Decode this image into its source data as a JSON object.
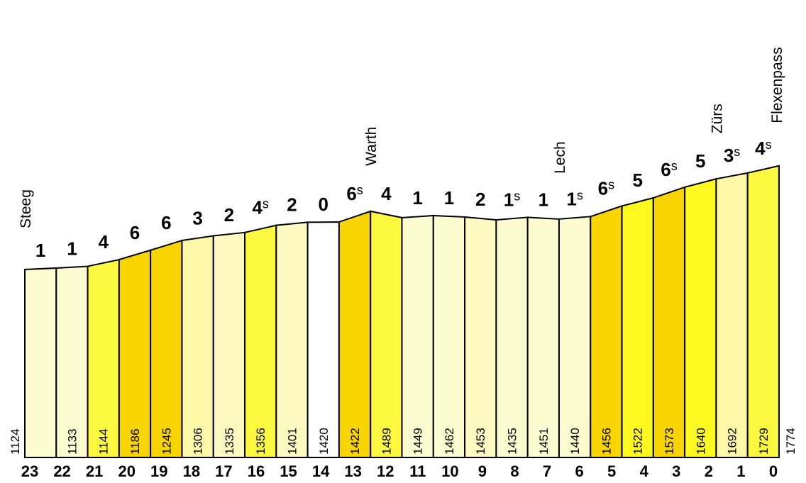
{
  "profile": {
    "elevations": [
      1124,
      1133,
      1144,
      1186,
      1245,
      1306,
      1335,
      1356,
      1401,
      1420,
      1422,
      1489,
      1449,
      1462,
      1453,
      1435,
      1451,
      1440,
      1456,
      1522,
      1573,
      1640,
      1692,
      1729,
      1774
    ],
    "distances": [
      23,
      22,
      21,
      20,
      19,
      18,
      17,
      16,
      15,
      14,
      13,
      12,
      11,
      10,
      9,
      8,
      7,
      6,
      5,
      4,
      3,
      2,
      1,
      0
    ],
    "places": [
      "Steeg",
      null,
      null,
      null,
      null,
      null,
      null,
      null,
      null,
      null,
      null,
      "Warth",
      null,
      null,
      null,
      null,
      null,
      "Lech",
      null,
      null,
      null,
      null,
      "Zürs",
      null,
      "Flexenpass"
    ],
    "segments": [
      {
        "grade": "1",
        "color": "#fdfbd0"
      },
      {
        "grade": "1",
        "color": "#fdfbd0"
      },
      {
        "grade": "4",
        "color": "#fcf840"
      },
      {
        "grade": "6",
        "color": "#f8d400"
      },
      {
        "grade": "6",
        "color": "#f8d400"
      },
      {
        "grade": "3",
        "color": "#fcf8a8"
      },
      {
        "grade": "2",
        "color": "#fcfac0"
      },
      {
        "grade": "4",
        "sup": "s",
        "color": "#fcf840"
      },
      {
        "grade": "2",
        "color": "#fcfac0"
      },
      {
        "grade": "0",
        "color": "#ffffff"
      },
      {
        "grade": "6",
        "sup": "s",
        "color": "#f8d400"
      },
      {
        "grade": "4",
        "color": "#fcf840"
      },
      {
        "grade": "1",
        "color": "#fdfbd0"
      },
      {
        "grade": "1",
        "color": "#fdfbd0"
      },
      {
        "grade": "2",
        "color": "#fcfac0"
      },
      {
        "grade": "1",
        "sup": "s",
        "color": "#fdfbd0"
      },
      {
        "grade": "1",
        "color": "#fdfbd0"
      },
      {
        "grade": "1",
        "sup": "s",
        "color": "#fdfbd0"
      },
      {
        "grade": "6",
        "sup": "s",
        "color": "#f8d400"
      },
      {
        "grade": "5",
        "color": "#fcf820"
      },
      {
        "grade": "6",
        "sup": "s",
        "color": "#f8d400"
      },
      {
        "grade": "5",
        "color": "#fcf820"
      },
      {
        "grade": "3",
        "sup": "s",
        "color": "#fcf8a8"
      },
      {
        "grade": "4",
        "sup": "s",
        "color": "#fcf840"
      }
    ]
  }
}
